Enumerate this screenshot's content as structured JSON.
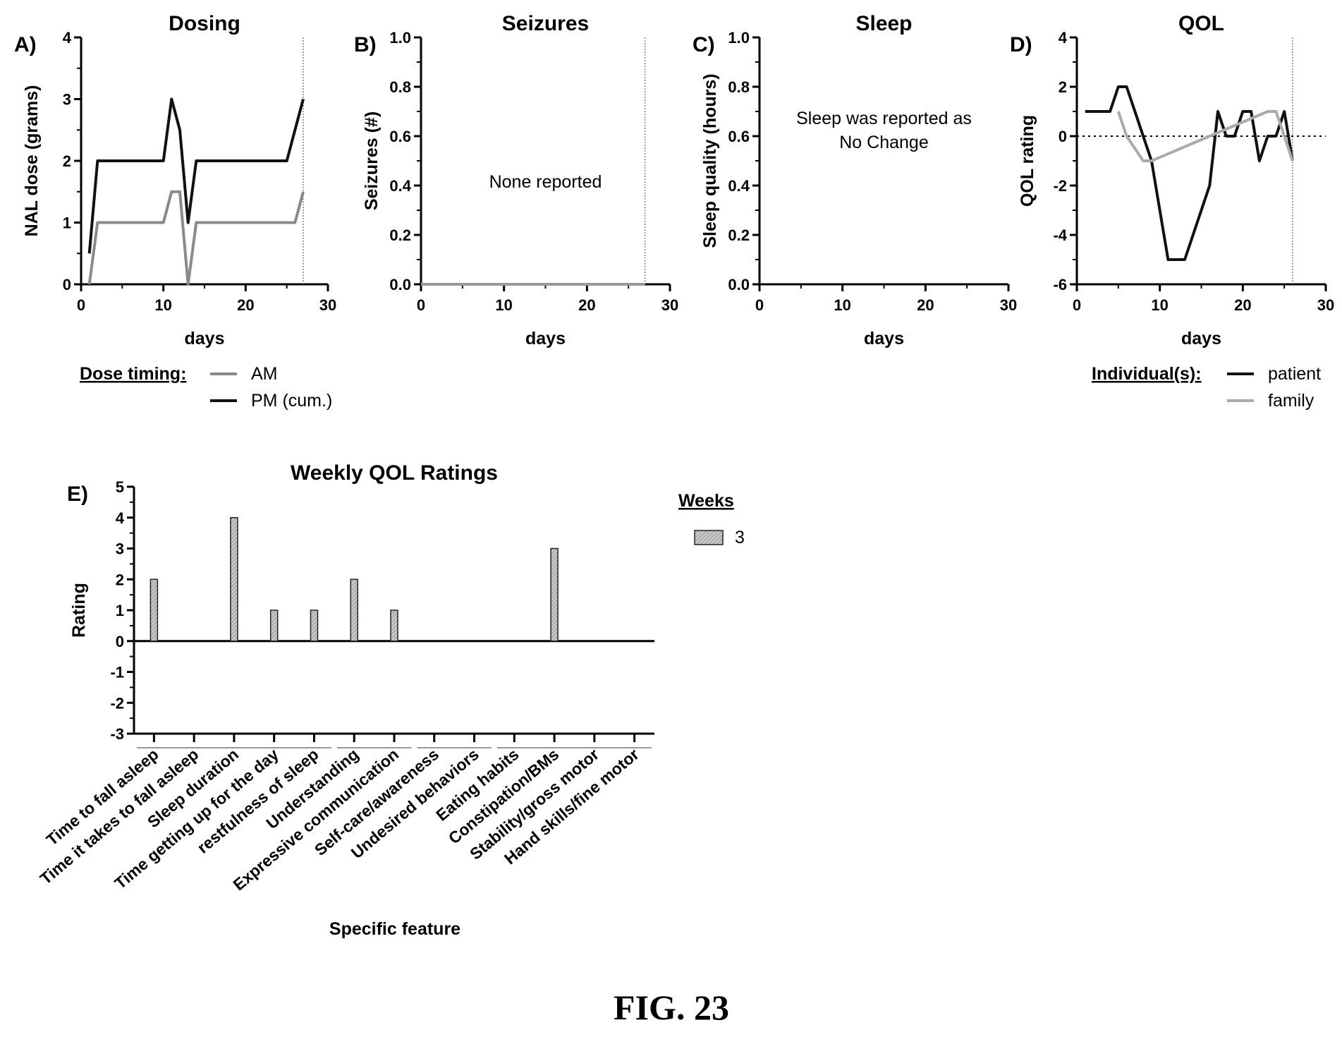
{
  "figure_caption": "FIG. 23",
  "chart_data": [
    {
      "panel": "A)",
      "type": "line",
      "title": "Dosing",
      "xlabel": "days",
      "ylabel": "NAL dose (grams)",
      "xlim": [
        0,
        30
      ],
      "ylim": [
        0,
        4
      ],
      "xticks": [
        "0",
        "10",
        "20",
        "30"
      ],
      "yticks": [
        "0",
        "1",
        "2",
        "3",
        "4"
      ],
      "vline": 27,
      "legend_title": "Dose timing:",
      "series": [
        {
          "name": "AM",
          "color": "#8a8a8a",
          "x": [
            1,
            2,
            10,
            11,
            12,
            13,
            14,
            25,
            26,
            27
          ],
          "y": [
            0,
            1,
            1,
            1.5,
            1.5,
            0,
            1,
            1,
            1,
            1.5
          ]
        },
        {
          "name": "PM (cum.)",
          "color": "#111111",
          "x": [
            1,
            2,
            10,
            11,
            12,
            13,
            14,
            25,
            26,
            27
          ],
          "y": [
            0.5,
            2,
            2,
            3,
            2.5,
            1,
            2,
            2,
            2.5,
            3
          ]
        }
      ]
    },
    {
      "panel": "B)",
      "type": "line",
      "title": "Seizures",
      "xlabel": "days",
      "ylabel": "Seizures (#)",
      "xlim": [
        0,
        30
      ],
      "ylim": [
        0,
        1
      ],
      "xticks": [
        "0",
        "10",
        "20",
        "30"
      ],
      "yticks": [
        "0.0",
        "0.2",
        "0.4",
        "0.6",
        "0.8",
        "1.0"
      ],
      "vline": 27,
      "annotation": "None reported",
      "series": [
        {
          "color": "#999999",
          "x": [
            0,
            27
          ],
          "y": [
            0,
            0
          ]
        }
      ]
    },
    {
      "panel": "C)",
      "type": "line",
      "title": "Sleep",
      "xlabel": "days",
      "ylabel": "Sleep quality (hours)",
      "xlim": [
        0,
        30
      ],
      "ylim": [
        0,
        1
      ],
      "xticks": [
        "0",
        "10",
        "20",
        "30"
      ],
      "yticks": [
        "0.0",
        "0.2",
        "0.4",
        "0.6",
        "0.8",
        "1.0"
      ],
      "annotation_lines": [
        "Sleep was reported as",
        "No Change"
      ],
      "series": []
    },
    {
      "panel": "D)",
      "type": "line",
      "title": "QOL",
      "xlabel": "days",
      "ylabel": "QOL rating",
      "xlim": [
        0,
        30
      ],
      "ylim": [
        -6,
        4
      ],
      "xticks": [
        "0",
        "10",
        "20",
        "30"
      ],
      "yticks": [
        "-6",
        "-4",
        "-2",
        "0",
        "2",
        "4"
      ],
      "vline": 26,
      "hline_dotted": 0,
      "legend_title": "Individual(s):",
      "series": [
        {
          "name": "patient",
          "color": "#111111",
          "x": [
            1,
            4,
            5,
            6,
            9,
            11,
            13,
            16,
            17,
            18,
            19,
            20,
            21,
            22,
            23,
            24,
            25,
            26
          ],
          "y": [
            1,
            1,
            2,
            2,
            -1,
            -5,
            -5,
            -2,
            1,
            0,
            0,
            1,
            1,
            -1,
            0,
            0,
            1,
            -1
          ]
        },
        {
          "name": "family",
          "color": "#aaaaaa",
          "x": [
            5,
            6,
            8,
            9,
            23,
            24,
            25,
            26
          ],
          "y": [
            1,
            0,
            -1,
            -1,
            1,
            1,
            0,
            -1
          ]
        }
      ]
    },
    {
      "panel": "E)",
      "type": "bar",
      "title": "Weekly QOL Ratings",
      "xlabel": "Specific feature",
      "ylabel": "Rating",
      "ylim": [
        -3,
        5
      ],
      "yticks": [
        "-3",
        "-2",
        "-1",
        "0",
        "1",
        "2",
        "3",
        "4",
        "5"
      ],
      "legend_title": "Weeks",
      "categories": [
        "Time to fall asleep",
        "Time it takes to fall asleep",
        "Sleep duration",
        "Time getting up for the day",
        "restfulness of sleep",
        "Understanding",
        "Expressive communication",
        "Self-care/awareness",
        "Undesired behaviors",
        "Eating habits",
        "Constipation/BMs",
        "Stability/gross motor",
        "Hand skills/fine motor"
      ],
      "category_groups": [
        [
          0,
          4
        ],
        [
          5,
          6
        ],
        [
          7,
          8
        ],
        [
          9,
          12
        ]
      ],
      "series": [
        {
          "name": "3",
          "color": "#b5b5b5",
          "values": [
            2,
            0,
            4,
            1,
            1,
            2,
            1,
            0,
            0,
            0,
            3,
            0,
            0
          ]
        }
      ]
    }
  ]
}
